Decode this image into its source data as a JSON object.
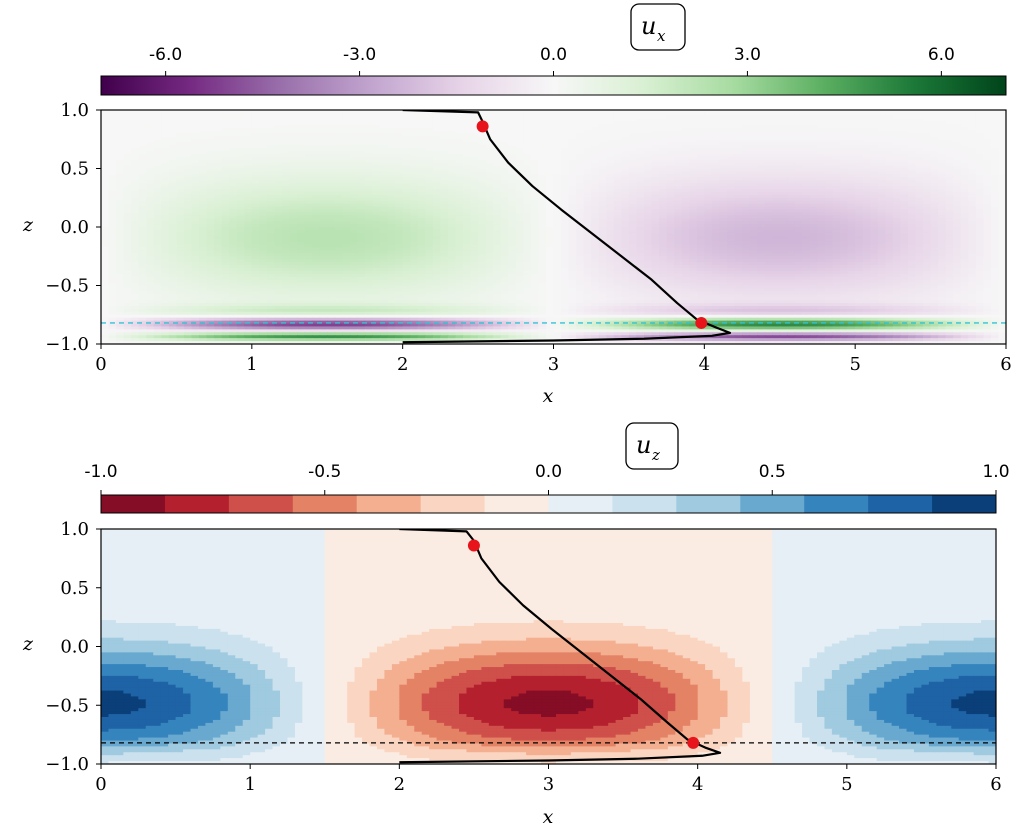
{
  "chart_data": [
    {
      "type": "heatmap",
      "field": "x",
      "title_base": "u",
      "title_sub": "x",
      "xlabel": "x",
      "ylabel": "z",
      "xlim": [
        0,
        6
      ],
      "ylim": [
        -1,
        1
      ],
      "x_ticks": [
        0,
        1,
        2,
        3,
        4,
        5,
        6
      ],
      "y_ticks": [
        1.0,
        0.5,
        0.0,
        -0.5,
        -1.0
      ],
      "x_tick_labels": [
        "0",
        "1",
        "2",
        "3",
        "4",
        "5",
        "6"
      ],
      "y_tick_labels": [
        "1.0",
        "0.5",
        "0.0",
        "−0.5",
        "−1.0"
      ],
      "colorbar": {
        "colormap": "PRGn",
        "range": [
          -7.0,
          7.0
        ],
        "ticks": [
          -6.0,
          -3.0,
          0.0,
          3.0,
          6.0
        ],
        "tick_labels": [
          "-6.0",
          "-3.0",
          "0.0",
          "3.0",
          "6.0"
        ],
        "colors": [
          "#40004b",
          "#762a83",
          "#9970ab",
          "#c2a5cf",
          "#e7d4e8",
          "#f7f7f7",
          "#d9f0d3",
          "#a6dba0",
          "#5aae61",
          "#1b7837",
          "#00441b"
        ]
      },
      "reference_line": {
        "z": -0.82,
        "style": "dashed",
        "color": "#31c4d6"
      },
      "profile_curve": [
        {
          "x": 2.0,
          "z": 1.0
        },
        {
          "x": 2.5,
          "z": 0.98
        },
        {
          "x": 2.53,
          "z": 0.9
        },
        {
          "x": 2.58,
          "z": 0.75
        },
        {
          "x": 2.7,
          "z": 0.55
        },
        {
          "x": 2.86,
          "z": 0.35
        },
        {
          "x": 3.05,
          "z": 0.15
        },
        {
          "x": 3.25,
          "z": -0.05
        },
        {
          "x": 3.45,
          "z": -0.25
        },
        {
          "x": 3.65,
          "z": -0.45
        },
        {
          "x": 3.82,
          "z": -0.65
        },
        {
          "x": 3.95,
          "z": -0.79
        },
        {
          "x": 4.08,
          "z": -0.86
        },
        {
          "x": 4.17,
          "z": -0.905
        },
        {
          "x": 4.05,
          "z": -0.93
        },
        {
          "x": 3.6,
          "z": -0.955
        },
        {
          "x": 3.0,
          "z": -0.97
        },
        {
          "x": 2.0,
          "z": -0.985
        }
      ],
      "markers": [
        {
          "x": 2.53,
          "z": 0.86,
          "color": "#e8141b"
        },
        {
          "x": 3.98,
          "z": -0.82,
          "color": "#e8141b"
        }
      ]
    },
    {
      "type": "heatmap",
      "field": "z",
      "title_base": "u",
      "title_sub": "z",
      "xlabel": "x",
      "ylabel": "z",
      "xlim": [
        0,
        6
      ],
      "ylim": [
        -1,
        1
      ],
      "x_ticks": [
        0,
        1,
        2,
        3,
        4,
        5,
        6
      ],
      "y_ticks": [
        1.0,
        0.5,
        0.0,
        -0.5,
        -1.0
      ],
      "x_tick_labels": [
        "0",
        "1",
        "2",
        "3",
        "4",
        "5",
        "6"
      ],
      "y_tick_labels": [
        "1.0",
        "0.5",
        "0.0",
        "−0.5",
        "−1.0"
      ],
      "colorbar": {
        "colormap": "RdBu",
        "range": [
          -1.0,
          1.0
        ],
        "ticks": [
          -1.0,
          -0.5,
          0.0,
          0.5,
          1.0
        ],
        "tick_labels": [
          "-1.0",
          "-0.5",
          "0.0",
          "0.5",
          "1.0"
        ],
        "levels": 14,
        "colors": [
          "#850d25",
          "#b5202f",
          "#cf4f4a",
          "#e48265",
          "#f4ae90",
          "#fad6c2",
          "#fbece3",
          "#e6eff5",
          "#cbe1ee",
          "#9fcae0",
          "#69a9d0",
          "#3584be",
          "#1e63a5",
          "#0b3f79"
        ]
      },
      "reference_line": {
        "z": -0.82,
        "style": "dashed",
        "color": "#000000"
      },
      "profile_curve": [
        {
          "x": 2.0,
          "z": 1.0
        },
        {
          "x": 2.45,
          "z": 0.98
        },
        {
          "x": 2.5,
          "z": 0.9
        },
        {
          "x": 2.55,
          "z": 0.75
        },
        {
          "x": 2.67,
          "z": 0.55
        },
        {
          "x": 2.83,
          "z": 0.35
        },
        {
          "x": 3.02,
          "z": 0.15
        },
        {
          "x": 3.22,
          "z": -0.05
        },
        {
          "x": 3.42,
          "z": -0.25
        },
        {
          "x": 3.62,
          "z": -0.45
        },
        {
          "x": 3.8,
          "z": -0.65
        },
        {
          "x": 3.93,
          "z": -0.79
        },
        {
          "x": 4.05,
          "z": -0.86
        },
        {
          "x": 4.15,
          "z": -0.905
        },
        {
          "x": 4.03,
          "z": -0.93
        },
        {
          "x": 3.6,
          "z": -0.955
        },
        {
          "x": 3.0,
          "z": -0.97
        },
        {
          "x": 2.0,
          "z": -0.985
        }
      ],
      "markers": [
        {
          "x": 2.5,
          "z": 0.86,
          "color": "#e8141b"
        },
        {
          "x": 3.97,
          "z": -0.82,
          "color": "#e8141b"
        }
      ]
    }
  ]
}
